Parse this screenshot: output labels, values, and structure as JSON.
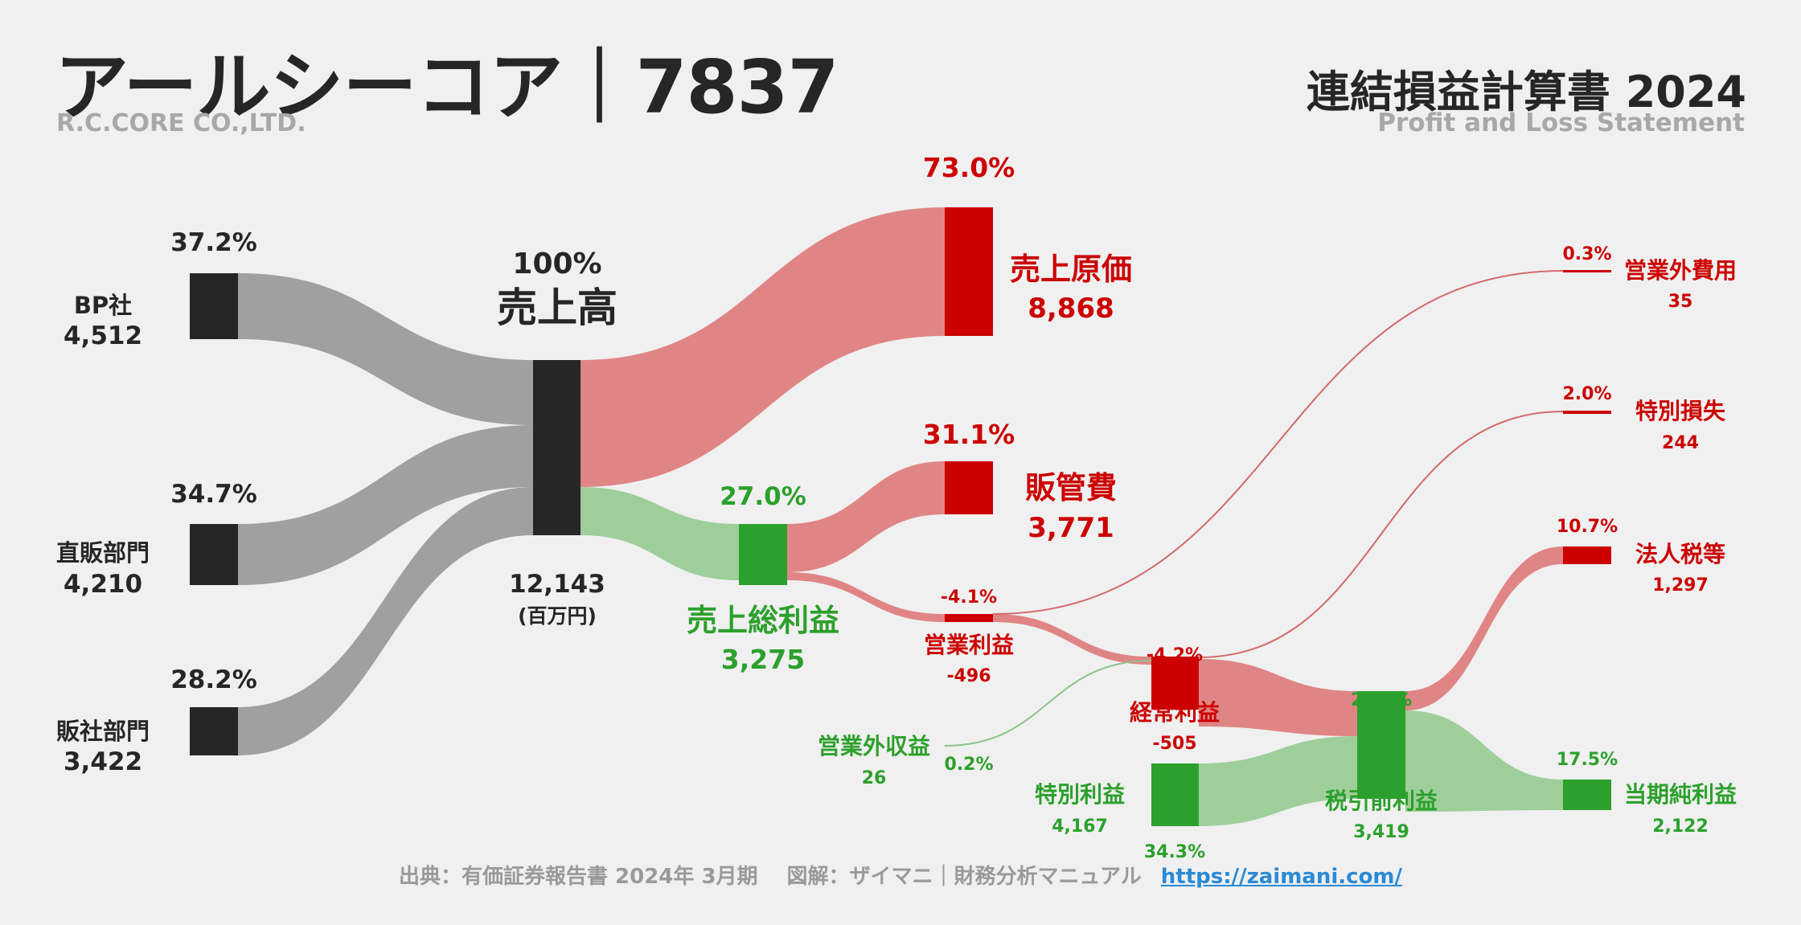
{
  "header": {
    "title": "アールシーコア｜7837",
    "company_en": "R.C.CORE CO.,LTD.",
    "statement": "連結損益計算書 2024",
    "statement_en": "Profit and Loss Statement"
  },
  "footer": {
    "source": "出典：有価証券報告書 2024年 3月期",
    "credit": "図解：ザイマニ｜財務分析マニュアル",
    "url": "https://zaimani.com/"
  },
  "colors": {
    "dark": "#262626",
    "gray_flow": "#a0a0a0",
    "red": "#cc0000",
    "red_flow": "#e08585",
    "green": "#2ca02c",
    "green_flow": "#9ecf9a"
  },
  "chart_data": {
    "type": "sankey",
    "unit": "(百万円)",
    "nodes": [
      {
        "id": "bp",
        "label": "BP社",
        "value": "4,512",
        "pct": "37.2%",
        "kind": "segment"
      },
      {
        "id": "direct",
        "label": "直販部門",
        "value": "4,210",
        "pct": "34.7%",
        "kind": "segment"
      },
      {
        "id": "hansha",
        "label": "販社部門",
        "value": "3,422",
        "pct": "28.2%",
        "kind": "segment"
      },
      {
        "id": "revenue",
        "label": "売上高",
        "value": "12,143",
        "pct": "100%",
        "kind": "total"
      },
      {
        "id": "cogs",
        "label": "売上原価",
        "value": "8,868",
        "pct": "73.0%",
        "kind": "cost"
      },
      {
        "id": "gross",
        "label": "売上総利益",
        "value": "3,275",
        "pct": "27.0%",
        "kind": "profit"
      },
      {
        "id": "sga",
        "label": "販管費",
        "value": "3,771",
        "pct": "31.1%",
        "kind": "cost"
      },
      {
        "id": "op",
        "label": "営業利益",
        "value": "-496",
        "pct": "-4.1%",
        "kind": "cost"
      },
      {
        "id": "nonop_inc",
        "label": "営業外収益",
        "value": "26",
        "pct": "0.2%",
        "kind": "profit"
      },
      {
        "id": "nonop_exp",
        "label": "営業外費用",
        "value": "35",
        "pct": "0.3%",
        "kind": "cost"
      },
      {
        "id": "ordinary",
        "label": "経常利益",
        "value": "-505",
        "pct": "-4.2%",
        "kind": "cost"
      },
      {
        "id": "ext_gain",
        "label": "特別利益",
        "value": "4,167",
        "pct": "34.3%",
        "kind": "profit"
      },
      {
        "id": "ext_loss",
        "label": "特別損失",
        "value": "244",
        "pct": "2.0%",
        "kind": "cost"
      },
      {
        "id": "pretax",
        "label": "税引前利益",
        "value": "3,419",
        "pct": "28.2%",
        "kind": "profit"
      },
      {
        "id": "tax",
        "label": "法人税等",
        "value": "1,297",
        "pct": "10.7%",
        "kind": "cost"
      },
      {
        "id": "net",
        "label": "当期純利益",
        "value": "2,122",
        "pct": "17.5%",
        "kind": "profit"
      }
    ]
  }
}
